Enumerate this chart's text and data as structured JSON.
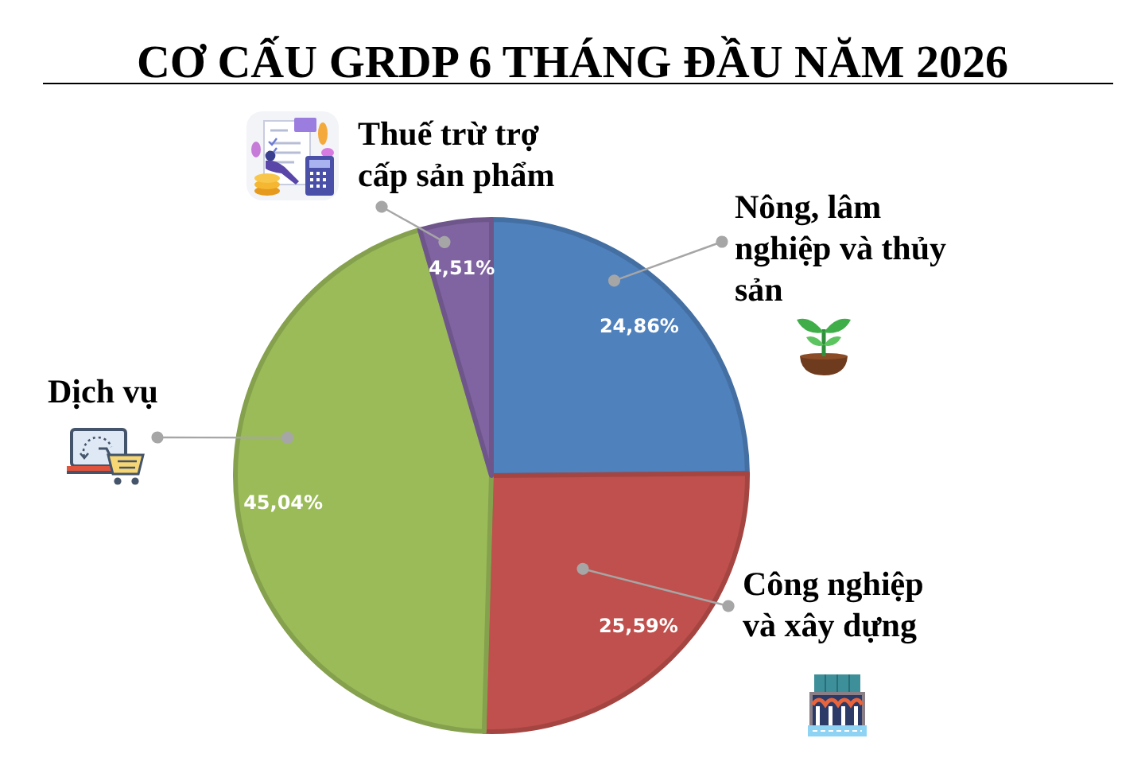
{
  "chart_data": {
    "type": "pie",
    "title": "CƠ CẤU GRDP 6 THÁNG ĐẦU NĂM 2026",
    "categories": [
      "Nông, lâm nghiệp và thủy sản",
      "Công nghiệp và xây dựng",
      "Dịch vụ",
      "Thuế trừ trợ cấp sản phẩm"
    ],
    "values": [
      24.86,
      25.59,
      45.04,
      4.51
    ],
    "colors": [
      "#4f81bd",
      "#c0504d",
      "#9bbb59",
      "#8064a2"
    ],
    "value_labels": [
      "24,86%",
      "25,59%",
      "45,04%",
      "4,51%"
    ]
  }
}
